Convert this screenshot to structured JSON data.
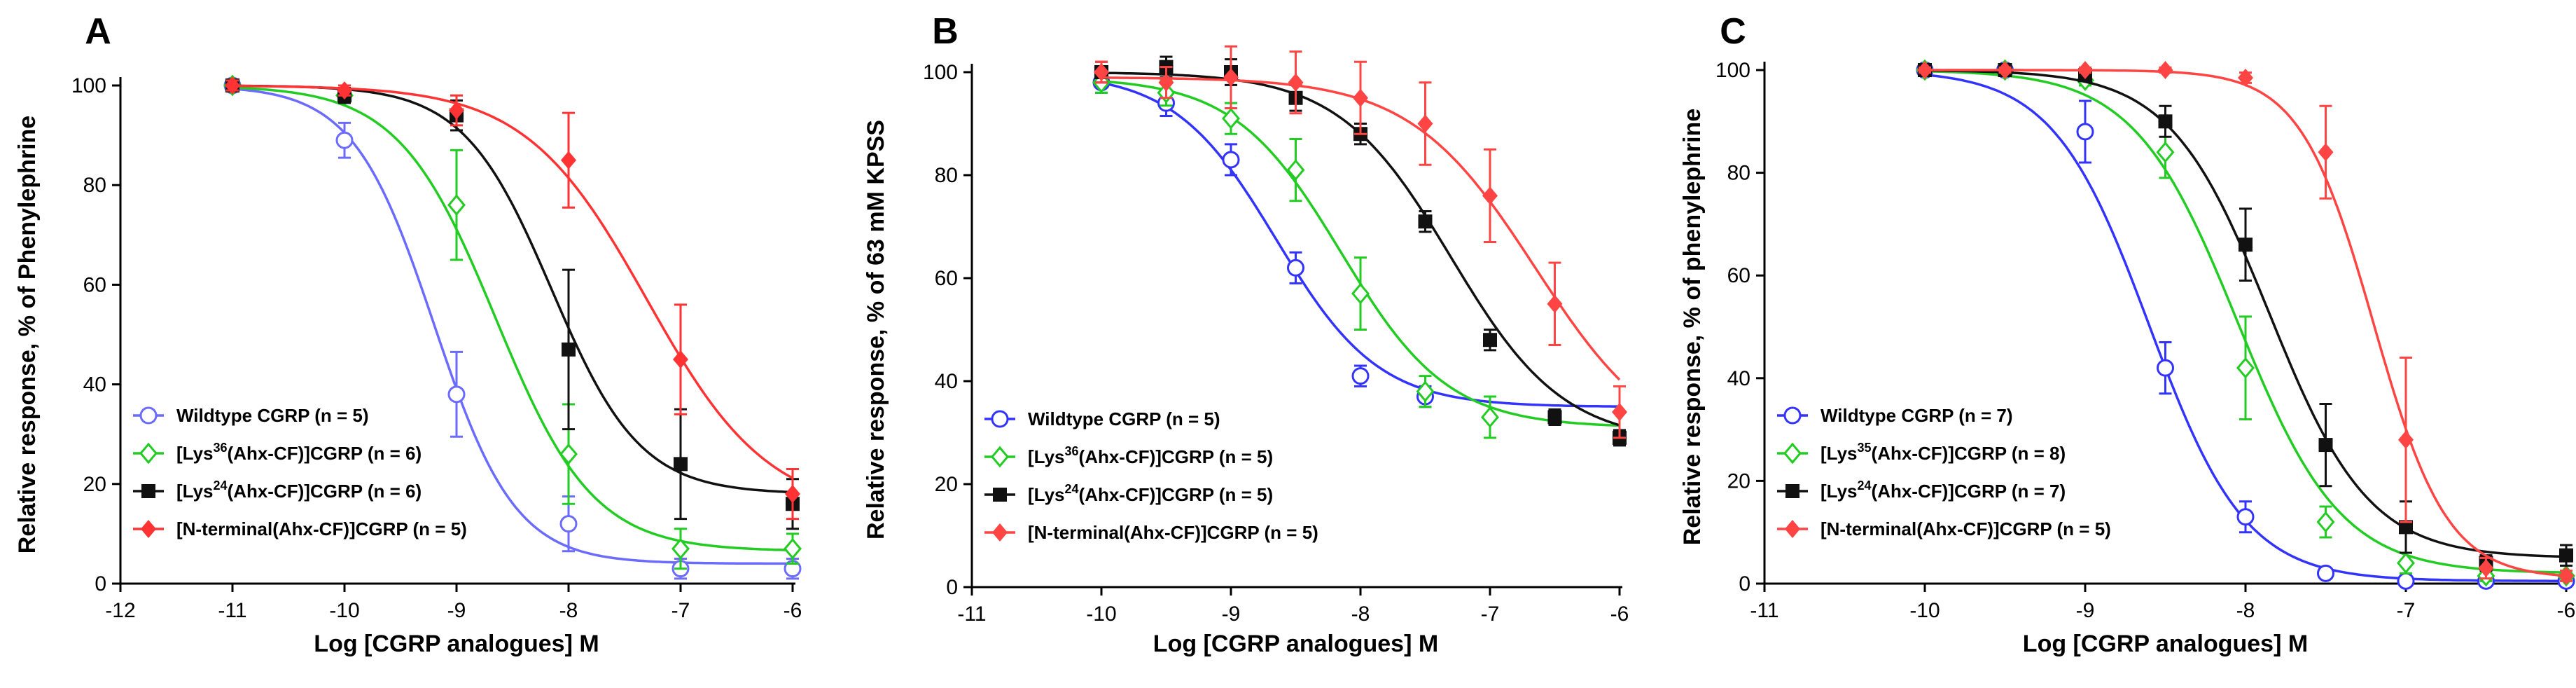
{
  "chart_data": [
    {
      "type": "line",
      "panel": "A",
      "xlabel": "Log [CGRP analogues] M",
      "ylabel": "Relative response, % of Phenylephrine",
      "xlim": [
        -12,
        -6
      ],
      "ylim": [
        0,
        100
      ],
      "xticks": [
        -12,
        -11,
        -10,
        -9,
        -8,
        -7,
        -6
      ],
      "yticks": [
        0,
        20,
        40,
        60,
        80,
        100
      ],
      "legend_position": "bottom-left",
      "series": [
        {
          "name": "Wildtype CGRP",
          "legend_main": "Wildtype CGRP",
          "legend_sup": "",
          "legend_tail": "",
          "legend_n": "(n = 5)",
          "color": "#6b6bff",
          "marker": "open-circle",
          "x": [
            -11,
            -10,
            -9,
            -8,
            -7,
            -6
          ],
          "y": [
            100,
            89,
            38,
            12,
            3,
            3
          ],
          "err": [
            1,
            3.5,
            8.5,
            5.5,
            2,
            2
          ],
          "fit": {
            "top": 100,
            "bottom": 4,
            "logEC50": -9.2,
            "hill": 1.2
          }
        },
        {
          "name": "[Lys36(Ahx-CF)]CGRP",
          "legend_main": "[Lys",
          "legend_sup": "36",
          "legend_tail": "(Ahx-CF)]CGRP",
          "legend_n": "(n = 6)",
          "color": "#22cc22",
          "marker": "open-diamond",
          "x": [
            -11,
            -10,
            -9,
            -8,
            -7,
            -6
          ],
          "y": [
            100,
            98,
            76,
            26,
            7,
            7
          ],
          "err": [
            1,
            1.5,
            11,
            10,
            4,
            3
          ],
          "fit": {
            "top": 100,
            "bottom": 6.5,
            "logEC50": -8.65,
            "hill": 1.0
          }
        },
        {
          "name": "[Lys24(Ahx-CF)]CGRP",
          "legend_main": "[Lys",
          "legend_sup": "24",
          "legend_tail": "(Ahx-CF)]CGRP",
          "legend_n": "(n = 6)",
          "color": "#111111",
          "marker": "square",
          "x": [
            -11,
            -10,
            -9,
            -8,
            -7,
            -6
          ],
          "y": [
            100,
            98,
            94,
            47,
            24,
            16
          ],
          "err": [
            1,
            1.5,
            3,
            16,
            11,
            5
          ],
          "fit": {
            "top": 100,
            "bottom": 18,
            "logEC50": -8.15,
            "hill": 1.1
          }
        },
        {
          "name": "[N-terminal(Ahx-CF)]CGRP",
          "legend_main": "[N-terminal(Ahx-CF)]CGRP",
          "legend_sup": "",
          "legend_tail": "",
          "legend_n": "(n = 5)",
          "color": "#ff3333",
          "marker": "diamond",
          "x": [
            -11,
            -10,
            -9,
            -8,
            -7,
            -6
          ],
          "y": [
            100,
            99,
            95,
            85,
            45,
            18
          ],
          "err": [
            1,
            1,
            3,
            9.5,
            11,
            5
          ],
          "fit": {
            "top": 100,
            "bottom": 14,
            "logEC50": -7.3,
            "hill": 0.8
          }
        }
      ]
    },
    {
      "type": "line",
      "panel": "B",
      "xlabel": "Log [CGRP analogues]  M",
      "ylabel": "Relative response, % of 63 mM KPSS",
      "xlim": [
        -11,
        -6
      ],
      "ylim": [
        0,
        100
      ],
      "xticks": [
        -11,
        -10,
        -9,
        -8,
        -7,
        -6
      ],
      "yticks": [
        0,
        20,
        40,
        60,
        80,
        100
      ],
      "legend_position": "bottom-left",
      "series": [
        {
          "name": "Wildtype CGRP",
          "legend_main": "Wildtype CGRP",
          "legend_sup": "",
          "legend_tail": "",
          "legend_n": "(n = 5)",
          "color": "#3333ff",
          "marker": "open-circle",
          "x": [
            -10,
            -9.5,
            -9,
            -8.5,
            -8,
            -7.5
          ],
          "y": [
            98,
            94,
            83,
            62,
            41,
            37
          ],
          "err": [
            2,
            2.5,
            3,
            3,
            2,
            2
          ],
          "fit": {
            "top": 100,
            "bottom": 35,
            "logEC50": -8.65,
            "hill": 1.1
          }
        },
        {
          "name": "[Lys36(Ahx-CF)]CGRP",
          "legend_main": "[Lys",
          "legend_sup": "36",
          "legend_tail": "(Ahx-CF)]CGRP",
          "legend_n": "(n = 5)",
          "color": "#22cc22",
          "marker": "open-diamond",
          "x": [
            -10,
            -9.5,
            -9,
            -8.5,
            -8,
            -7.5,
            -7
          ],
          "y": [
            98,
            96,
            91,
            81,
            57,
            38,
            33
          ],
          "err": [
            2,
            2.5,
            3,
            6,
            7,
            3,
            4
          ],
          "fit": {
            "top": 99,
            "bottom": 31,
            "logEC50": -8.15,
            "hill": 1.05
          }
        },
        {
          "name": "[Lys24(Ahx-CF)]CGRP",
          "legend_main": "[Lys",
          "legend_sup": "24",
          "legend_tail": "(Ahx-CF)]CGRP",
          "legend_n": "(n = 5)",
          "color": "#111111",
          "marker": "square",
          "x": [
            -10,
            -9.5,
            -9,
            -8.5,
            -8,
            -7.5,
            -7,
            -6.5,
            -6
          ],
          "y": [
            100,
            101,
            100,
            95,
            88,
            71,
            48,
            33,
            29
          ],
          "err": [
            2,
            2,
            2.5,
            2.5,
            2,
            2,
            2,
            1.5,
            1.5
          ],
          "fit": {
            "top": 100,
            "bottom": 28,
            "logEC50": -7.3,
            "hill": 1.0
          }
        },
        {
          "name": "[N-terminal(Ahx-CF)]CGRP",
          "legend_main": "[N-terminal(Ahx-CF)]CGRP",
          "legend_sup": "",
          "legend_tail": "",
          "legend_n": "(n = 5)",
          "color": "#ff4444",
          "marker": "diamond",
          "x": [
            -10,
            -9.5,
            -9,
            -8.5,
            -8,
            -7.5,
            -7,
            -6.5,
            -6
          ],
          "y": [
            100,
            98,
            99,
            98,
            95,
            90,
            76,
            55,
            34
          ],
          "err": [
            2,
            3,
            6,
            6,
            7,
            8,
            9,
            8,
            5
          ],
          "fit": {
            "top": 99,
            "bottom": 25,
            "logEC50": -6.65,
            "hill": 0.9
          }
        }
      ]
    },
    {
      "type": "line",
      "panel": "C",
      "xlabel": "Log [CGRP analogues]  M",
      "ylabel": "Relative response, % of phenylephrine",
      "xlim": [
        -11,
        -6
      ],
      "ylim": [
        0,
        100
      ],
      "xticks": [
        -11,
        -10,
        -9,
        -8,
        -7,
        -6
      ],
      "yticks": [
        0,
        20,
        40,
        60,
        80,
        100
      ],
      "legend_position": "bottom-left",
      "series": [
        {
          "name": "Wildtype CGRP",
          "legend_main": "Wildtype CGRP",
          "legend_sup": "",
          "legend_tail": "",
          "legend_n": "(n = 7)",
          "color": "#3333ff",
          "marker": "open-circle",
          "x": [
            -10,
            -9.5,
            -9,
            -8.5,
            -8,
            -7.5,
            -7,
            -6.5,
            -6
          ],
          "y": [
            100,
            100,
            88,
            42,
            13,
            2,
            0.5,
            0.5,
            0.5
          ],
          "err": [
            0.5,
            0.5,
            6,
            5,
            3,
            1,
            0.5,
            0.5,
            0.5
          ],
          "fit": {
            "top": 100,
            "bottom": 0.5,
            "logEC50": -8.6,
            "hill": 1.45
          }
        },
        {
          "name": "[Lys35(Ahx-CF)]CGRP",
          "legend_main": "[Lys",
          "legend_sup": "35",
          "legend_tail": "(Ahx-CF)]CGRP",
          "legend_n": "(n = 8)",
          "color": "#22cc22",
          "marker": "open-diamond",
          "x": [
            -10,
            -9.5,
            -9,
            -8.5,
            -8,
            -7.5,
            -7,
            -6.5,
            -6
          ],
          "y": [
            100,
            100,
            98,
            84,
            42,
            12,
            4,
            1.5,
            1.5
          ],
          "err": [
            0.5,
            0.5,
            1,
            5,
            10,
            3,
            2,
            1,
            1
          ],
          "fit": {
            "top": 100,
            "bottom": 2,
            "logEC50": -8.05,
            "hill": 1.35
          }
        },
        {
          "name": "[Lys24(Ahx-CF)]CGRP",
          "legend_main": "[Lys",
          "legend_sup": "24",
          "legend_tail": "(Ahx-CF)]CGRP",
          "legend_n": "(n = 7)",
          "color": "#111111",
          "marker": "square",
          "x": [
            -10,
            -9.5,
            -9,
            -8.5,
            -8,
            -7.5,
            -7,
            -6.5,
            -6
          ],
          "y": [
            100,
            100,
            99,
            90,
            66,
            27,
            11,
            4,
            5.5
          ],
          "err": [
            0.5,
            0.5,
            1,
            3,
            7,
            8,
            5,
            1.5,
            2
          ],
          "fit": {
            "top": 100,
            "bottom": 5,
            "logEC50": -7.85,
            "hill": 1.4
          }
        },
        {
          "name": "[N-terminal(Ahx-CF)]CGRP",
          "legend_main": "[N-terminal(Ahx-CF)]CGRP",
          "legend_sup": "",
          "legend_tail": "",
          "legend_n": "(n = 5)",
          "color": "#ff4444",
          "marker": "diamond",
          "x": [
            -10,
            -9.5,
            -9,
            -8.5,
            -8,
            -7.5,
            -7,
            -6.5,
            -6
          ],
          "y": [
            100,
            100,
            100,
            100,
            98.5,
            84,
            28,
            3,
            1.5
          ],
          "err": [
            0.5,
            0.5,
            0.5,
            0.5,
            1,
            9,
            16,
            2,
            1
          ],
          "fit": {
            "top": 100,
            "bottom": 1,
            "logEC50": -7.2,
            "hill": 1.9
          }
        }
      ]
    }
  ]
}
